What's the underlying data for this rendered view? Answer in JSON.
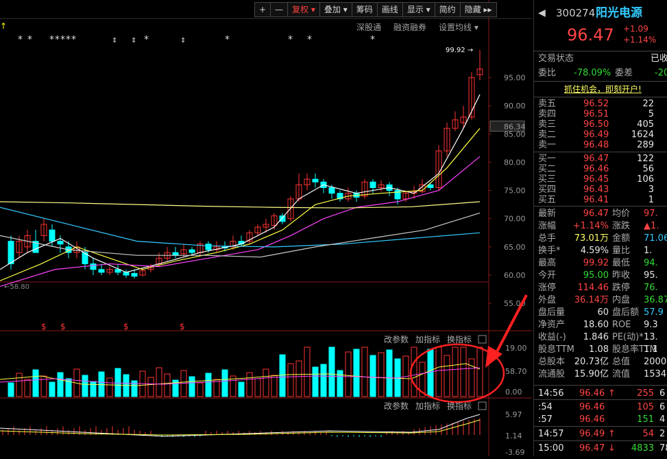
{
  "toolbar": {
    "plus": "+",
    "minus": "—",
    "fuquan": "复权",
    "diejia": "叠加",
    "chouma": "筹码",
    "huaxian": "画线",
    "xianshi": "显示",
    "jianyue": "简约",
    "yincang": "隐藏"
  },
  "subbar": {
    "sgt": "深股通",
    "rzrq": "融资融券",
    "settings": "设置均线"
  },
  "price_axis": [
    "95.00",
    "90.00",
    "86.34",
    "85.00",
    "80.00",
    "75.00",
    "70.00",
    "65.00",
    "60.00",
    "55.00"
  ],
  "high_marker": "99.92",
  "low_marker": "58.80",
  "vol_panel": {
    "gaicanshu": "改参数",
    "jiazhibiao": "加指标",
    "huanzhibiao": "换指标",
    "axis": [
      "19.00",
      "58.70",
      "0.00"
    ]
  },
  "macd_panel": {
    "gaicanshu": "改参数",
    "jiazhibiao": "加指标",
    "huanzhibiao": "换指标",
    "axis": [
      "5.97",
      "1.14",
      "-3.69"
    ]
  },
  "stock": {
    "code": "300274",
    "name": "阳光电源",
    "price": "96.47",
    "change": "+1.09",
    "pct": "+1.14%"
  },
  "trade_status": {
    "label": "交易状态",
    "value": "已收"
  },
  "weibi": {
    "label": "委比",
    "value": "-78.09%",
    "label2": "委差",
    "value2": "-20"
  },
  "promo": "抓住机会，即刻开户!",
  "asks": [
    {
      "label": "卖五",
      "price": "96.52",
      "vol": "22"
    },
    {
      "label": "卖四",
      "price": "96.51",
      "vol": "5"
    },
    {
      "label": "卖三",
      "price": "96.50",
      "vol": "405"
    },
    {
      "label": "卖二",
      "price": "96.49",
      "vol": "1624"
    },
    {
      "label": "卖一",
      "price": "96.48",
      "vol": "289"
    }
  ],
  "bids": [
    {
      "label": "买一",
      "price": "96.47",
      "vol": "122"
    },
    {
      "label": "买二",
      "price": "96.46",
      "vol": "56"
    },
    {
      "label": "买三",
      "price": "96.45",
      "vol": "106"
    },
    {
      "label": "买四",
      "price": "96.43",
      "vol": "3"
    },
    {
      "label": "买五",
      "price": "96.41",
      "vol": "1"
    }
  ],
  "stats": [
    {
      "l1": "最新",
      "v1": "96.47",
      "c1": "red",
      "l2": "均价",
      "v2": "97.",
      "c2": "red"
    },
    {
      "l1": "涨幅",
      "v1": "+1.14%",
      "c1": "red",
      "l2": "涨跌",
      "v2": "▲1.",
      "c2": "red"
    },
    {
      "l1": "总手",
      "v1": "73.01万",
      "c1": "yellow",
      "l2": "金额",
      "v2": "71.06",
      "c2": "cyan"
    },
    {
      "l1": "换手*",
      "v1": "4.59%",
      "c1": "white",
      "l2": "量比",
      "v2": "1.",
      "c2": "white"
    },
    {
      "l1": "最高",
      "v1": "99.92",
      "c1": "red",
      "l2": "最低",
      "v2": "94.",
      "c2": "green"
    },
    {
      "l1": "今开",
      "v1": "95.00",
      "c1": "green",
      "l2": "昨收",
      "v2": "95.",
      "c2": "white"
    },
    {
      "l1": "涨停",
      "v1": "114.46",
      "c1": "red",
      "l2": "跌停",
      "v2": "76.",
      "c2": "green"
    },
    {
      "l1": "外盘",
      "v1": "36.14万",
      "c1": "red",
      "l2": "内盘",
      "v2": "36.87",
      "c2": "green"
    },
    {
      "l1": "盘后量",
      "v1": "60",
      "c1": "white",
      "l2": "盘后额",
      "v2": "57.9",
      "c2": "cyan"
    },
    {
      "l1": "净资产",
      "v1": "18.60",
      "c1": "white",
      "l2": "ROE",
      "v2": "9.3",
      "c2": "white"
    },
    {
      "l1": "收益(-)",
      "v1": "1.846",
      "c1": "white",
      "l2": "PE(动)*",
      "v2": "13.",
      "c2": "white"
    },
    {
      "l1": "股息TTM",
      "v1": "1.08",
      "c1": "white",
      "l2": "股息率TTM",
      "v2": "1.1",
      "c2": "white"
    },
    {
      "l1": "总股本",
      "v1": "20.73亿",
      "c1": "white",
      "l2": "总值",
      "v2": "2000",
      "c2": "white"
    },
    {
      "l1": "流通股",
      "v1": "15.90亿",
      "c1": "white",
      "l2": "流值",
      "v2": "1534",
      "c2": "white"
    }
  ],
  "ticks": [
    {
      "time": "14:56",
      "price": "96.46",
      "arrow": "↑",
      "vol": "255",
      "extra": "6",
      "pc": "red",
      "vc": "red"
    },
    {
      "time": ":54",
      "price": "96.46",
      "arrow": "",
      "vol": "105",
      "extra": "6",
      "pc": "red",
      "vc": "red"
    },
    {
      "time": ":57",
      "price": "96.46",
      "arrow": "",
      "vol": "151",
      "extra": "4",
      "pc": "red",
      "vc": "green"
    },
    {
      "time": "14:57",
      "price": "96.49",
      "arrow": "↑",
      "vol": "54",
      "extra": "2",
      "pc": "red",
      "vc": "red"
    },
    {
      "time": "15:00",
      "price": "96.47",
      "arrow": "↓",
      "vol": "4833",
      "extra": "78",
      "pc": "red",
      "vc": "green"
    }
  ]
}
